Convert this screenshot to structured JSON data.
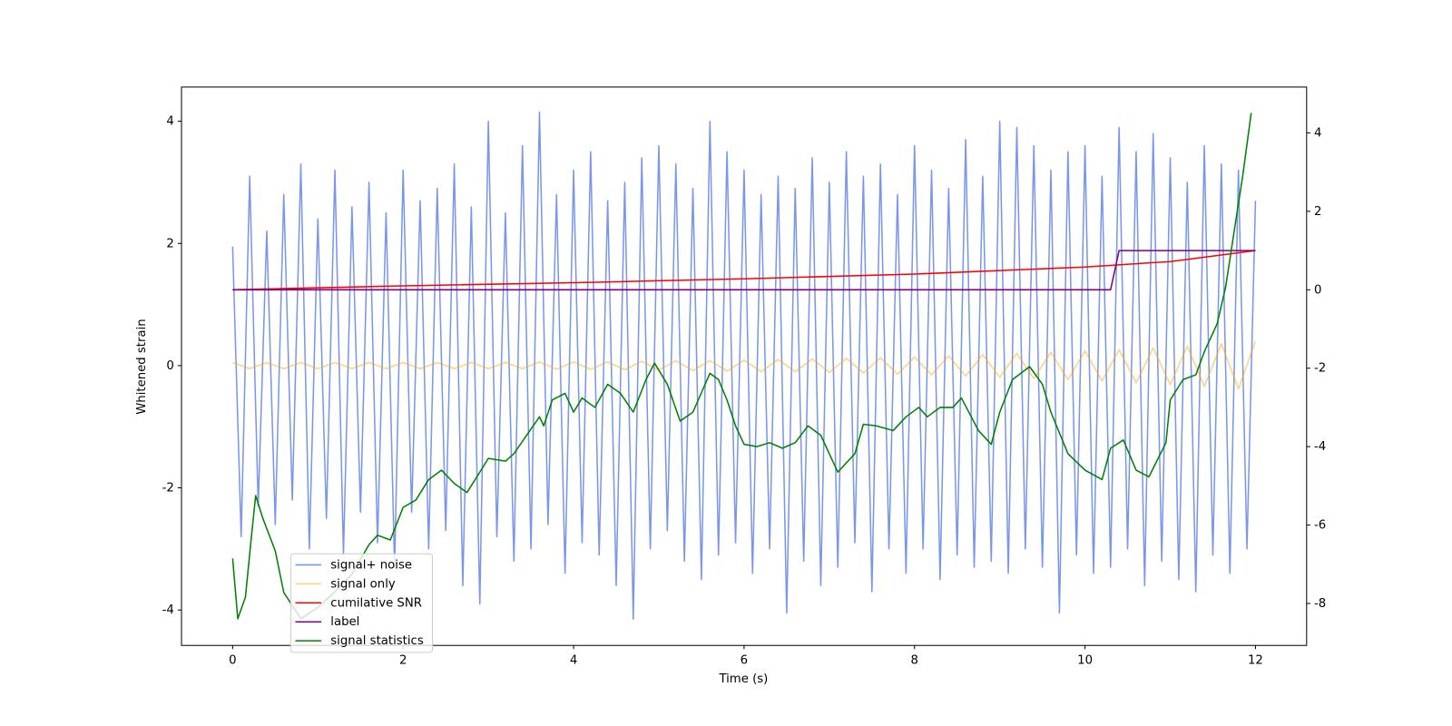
{
  "chart_data": {
    "type": "line",
    "xlabel": "Time (s)",
    "ylabel": "Whitened strain",
    "xlim": [
      -0.6,
      12.6
    ],
    "xticks": [
      0,
      2,
      4,
      6,
      8,
      10,
      12
    ],
    "ylim": [
      -4.58,
      4.56
    ],
    "yticks": [
      -4,
      -2,
      0,
      2,
      4
    ],
    "y2lim": [
      -9.07,
      5.17
    ],
    "y2ticks": [
      -8,
      -6,
      -4,
      -2,
      0,
      2,
      4
    ],
    "legend": "lower left",
    "series": [
      {
        "name": "signal+ noise",
        "color": "#4169e1",
        "alpha": 0.7,
        "x": [
          0,
          0.1,
          0.2,
          0.3,
          0.4,
          0.5,
          0.6,
          0.7,
          0.8,
          0.9,
          1,
          1.1,
          1.2,
          1.3,
          1.4,
          1.5,
          1.6,
          1.7,
          1.8,
          1.9,
          2,
          2.1,
          2.2,
          2.3,
          2.4,
          2.5,
          2.6,
          2.7,
          2.8,
          2.9,
          3,
          3.1,
          3.2,
          3.3,
          3.4,
          3.5,
          3.6,
          3.7,
          3.8,
          3.9,
          4,
          4.1,
          4.2,
          4.3,
          4.4,
          4.5,
          4.6,
          4.7,
          4.8,
          4.9,
          5,
          5.1,
          5.2,
          5.3,
          5.4,
          5.5,
          5.6,
          5.7,
          5.8,
          5.9,
          6,
          6.1,
          6.2,
          6.3,
          6.4,
          6.5,
          6.6,
          6.7,
          6.8,
          6.9,
          7,
          7.1,
          7.2,
          7.3,
          7.4,
          7.5,
          7.6,
          7.7,
          7.8,
          7.9,
          8,
          8.1,
          8.2,
          8.3,
          8.4,
          8.5,
          8.6,
          8.7,
          8.8,
          8.9,
          9,
          9.1,
          9.2,
          9.3,
          9.4,
          9.5,
          9.6,
          9.7,
          9.8,
          9.9,
          10,
          10.1,
          10.2,
          10.3,
          10.4,
          10.5,
          10.6,
          10.7,
          10.8,
          10.9,
          11,
          11.1,
          11.2,
          11.3,
          11.4,
          11.5,
          11.6,
          11.7,
          11.8,
          11.9,
          12
        ],
        "values": [
          1.95,
          -2.8,
          3.1,
          -2.3,
          2.2,
          -2.6,
          2.8,
          -2.2,
          3.3,
          -3.0,
          2.4,
          -2.5,
          3.2,
          -3.1,
          2.6,
          -2.4,
          3.0,
          -2.9,
          2.5,
          -3.3,
          3.2,
          -2.4,
          2.7,
          -3.0,
          2.9,
          -2.7,
          3.3,
          -3.6,
          2.6,
          -3.9,
          4.0,
          -2.8,
          2.5,
          -3.2,
          3.6,
          -3.0,
          4.15,
          -2.6,
          2.8,
          -3.4,
          3.2,
          -2.9,
          3.5,
          -3.1,
          2.7,
          -3.6,
          3.0,
          -4.15,
          3.4,
          -3.0,
          3.6,
          -2.7,
          3.3,
          -3.2,
          2.9,
          -3.5,
          4.0,
          -3.1,
          3.5,
          -2.9,
          3.2,
          -3.4,
          2.8,
          -3.0,
          3.1,
          -4.05,
          2.9,
          -3.2,
          3.4,
          -3.6,
          3.0,
          -3.3,
          3.5,
          -2.9,
          3.1,
          -3.7,
          3.3,
          -3.0,
          2.8,
          -3.4,
          3.6,
          -3.0,
          3.2,
          -3.5,
          2.9,
          -3.1,
          3.7,
          -3.3,
          3.1,
          -3.2,
          4.0,
          -3.4,
          3.9,
          -3.0,
          3.6,
          -3.3,
          3.2,
          -4.05,
          3.5,
          -3.1,
          3.6,
          -3.4,
          3.1,
          -3.3,
          3.9,
          -3.0,
          3.5,
          -3.6,
          3.8,
          -3.2,
          3.4,
          -3.5,
          3.0,
          -3.7,
          3.6,
          -3.1,
          3.3,
          -3.4,
          3.2,
          -3.0,
          2.7
        ]
      },
      {
        "name": "signal only",
        "color": "#ffa500",
        "alpha": 0.5,
        "x": [
          0,
          0.2,
          0.4,
          0.6,
          0.8,
          1,
          1.2,
          1.4,
          1.6,
          1.8,
          2,
          2.2,
          2.4,
          2.6,
          2.8,
          3,
          3.2,
          3.4,
          3.6,
          3.8,
          4,
          4.2,
          4.4,
          4.6,
          4.8,
          5,
          5.2,
          5.4,
          5.6,
          5.8,
          6,
          6.2,
          6.4,
          6.6,
          6.8,
          7,
          7.2,
          7.4,
          7.6,
          7.8,
          8,
          8.2,
          8.4,
          8.6,
          8.8,
          9,
          9.2,
          9.4,
          9.6,
          9.8,
          10,
          10.2,
          10.4,
          10.6,
          10.8,
          11,
          11.2,
          11.4,
          11.6,
          11.8,
          12
        ],
        "values": [
          0.05,
          -0.05,
          0.05,
          -0.05,
          0.05,
          -0.05,
          0.05,
          -0.05,
          0.05,
          -0.05,
          0.05,
          -0.05,
          0.05,
          -0.05,
          0.05,
          -0.05,
          0.05,
          -0.05,
          0.06,
          -0.06,
          0.06,
          -0.06,
          0.06,
          -0.07,
          0.07,
          -0.07,
          0.08,
          -0.08,
          0.08,
          -0.09,
          0.09,
          -0.1,
          0.1,
          -0.1,
          0.11,
          -0.11,
          0.12,
          -0.12,
          0.13,
          -0.14,
          0.14,
          -0.15,
          0.16,
          -0.17,
          0.18,
          -0.19,
          0.2,
          -0.21,
          0.22,
          -0.23,
          0.24,
          -0.25,
          0.26,
          -0.28,
          0.29,
          -0.31,
          0.32,
          -0.34,
          0.36,
          -0.38,
          0.4
        ]
      },
      {
        "name": "cumilative SNR",
        "color": "#ff0000",
        "axis": "y2",
        "x": [
          0,
          2,
          4,
          6,
          8,
          10,
          11,
          12
        ],
        "values": [
          0,
          0.1,
          0.18,
          0.28,
          0.4,
          0.58,
          0.72,
          1.0
        ]
      },
      {
        "name": "label",
        "color": "#800080",
        "axis": "y2",
        "x": [
          0,
          10.3,
          10.4,
          12
        ],
        "values": [
          0,
          0,
          1,
          1
        ]
      },
      {
        "name": "signal statistics",
        "color": "#008000",
        "axis": "y2",
        "x": [
          0,
          0.06,
          0.15,
          0.22,
          0.27,
          0.35,
          0.5,
          0.6,
          0.8,
          1.0,
          1.2,
          1.4,
          1.6,
          1.7,
          1.85,
          2.0,
          2.15,
          2.3,
          2.45,
          2.6,
          2.75,
          2.9,
          3.0,
          3.2,
          3.3,
          3.45,
          3.6,
          3.65,
          3.75,
          3.9,
          4.0,
          4.1,
          4.25,
          4.4,
          4.55,
          4.7,
          4.85,
          4.95,
          5.1,
          5.25,
          5.4,
          5.6,
          5.7,
          5.8,
          5.9,
          6.0,
          6.15,
          6.3,
          6.45,
          6.6,
          6.75,
          6.9,
          7.1,
          7.3,
          7.4,
          7.55,
          7.75,
          7.9,
          8.05,
          8.15,
          8.3,
          8.45,
          8.55,
          8.75,
          8.9,
          9.0,
          9.15,
          9.35,
          9.5,
          9.6,
          9.8,
          10.0,
          10.2,
          10.3,
          10.45,
          10.6,
          10.75,
          10.95,
          11.0,
          11.15,
          11.3,
          11.4,
          11.55,
          11.65,
          11.75,
          11.85,
          11.95
        ],
        "values": [
          -6.85,
          -8.39,
          -7.84,
          -6.3,
          -5.25,
          -5.8,
          -6.66,
          -7.72,
          -8.39,
          -8.1,
          -7.7,
          -7.25,
          -6.5,
          -6.26,
          -6.38,
          -5.55,
          -5.36,
          -4.84,
          -4.6,
          -4.94,
          -5.17,
          -4.65,
          -4.3,
          -4.37,
          -4.18,
          -3.71,
          -3.24,
          -3.47,
          -2.81,
          -2.64,
          -3.12,
          -2.76,
          -3.0,
          -2.41,
          -2.64,
          -3.12,
          -2.29,
          -1.87,
          -2.41,
          -3.35,
          -3.12,
          -2.13,
          -2.29,
          -2.81,
          -3.47,
          -3.94,
          -4.0,
          -3.9,
          -4.04,
          -3.9,
          -3.47,
          -3.71,
          -4.65,
          -4.18,
          -3.43,
          -3.47,
          -3.59,
          -3.24,
          -3.0,
          -3.24,
          -3.0,
          -3.0,
          -2.76,
          -3.59,
          -3.94,
          -3.12,
          -2.29,
          -1.96,
          -2.41,
          -3.12,
          -4.18,
          -4.6,
          -4.84,
          -4.04,
          -3.83,
          -4.6,
          -4.77,
          -3.9,
          -2.81,
          -2.29,
          -2.17,
          -1.58,
          -0.87,
          0.07,
          1.49,
          2.9,
          4.51
        ]
      }
    ]
  }
}
